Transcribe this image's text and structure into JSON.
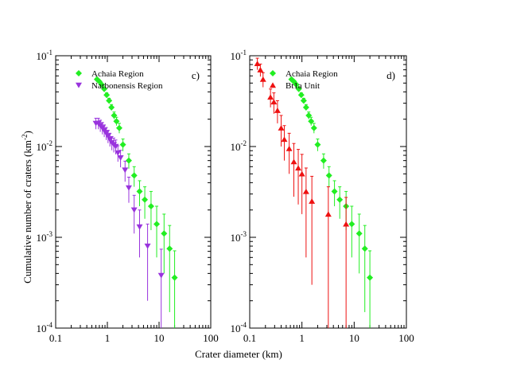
{
  "chart_data": {
    "type": "scatter",
    "xlabel": "Crater diameter (km)",
    "ylabel_main": "Cumulative number of craters (km",
    "ylabel_exp": "-2",
    "ylabel_end": ")",
    "xscale": "log",
    "yscale": "log",
    "colors": {
      "achaia": "#22ee22",
      "narbonensis": "#9933dd",
      "bt1a": "#ee1111"
    },
    "panels": [
      {
        "id": "c",
        "label": "c)",
        "xlim": [
          0.1,
          100
        ],
        "ylim": [
          0.0001,
          0.1
        ],
        "x_ticks": [
          {
            "value": 0.1,
            "label": "0.1"
          },
          {
            "value": 1,
            "label": "1"
          },
          {
            "value": 10,
            "label": "10"
          },
          {
            "value": 100,
            "label": "100"
          }
        ],
        "y_ticks": [
          {
            "value": 0.1,
            "base": "10",
            "exp": "-1"
          },
          {
            "value": 0.01,
            "base": "10",
            "exp": "-2"
          },
          {
            "value": 0.001,
            "base": "10",
            "exp": "-3"
          },
          {
            "value": 0.0001,
            "base": "10",
            "exp": "-4"
          }
        ],
        "series": [
          {
            "name": "Achaia Region",
            "marker": "diamond",
            "color_key": "achaia",
            "x": [
              0.63,
              0.7,
              0.78,
              0.87,
              0.97,
              1.08,
              1.2,
              1.35,
              1.5,
              1.7,
              2.0,
              2.6,
              3.3,
              4.2,
              5.3,
              7.0,
              9.0,
              12.5,
              16.0,
              20.0
            ],
            "y": [
              0.055,
              0.052,
              0.048,
              0.043,
              0.037,
              0.032,
              0.027,
              0.022,
              0.019,
              0.016,
              0.0105,
              0.007,
              0.0048,
              0.0032,
              0.0026,
              0.0022,
              0.0014,
              0.0011,
              0.00075,
              0.00036
            ],
            "err": [
              0.002,
              0.002,
              0.002,
              0.002,
              0.002,
              0.002,
              0.002,
              0.002,
              0.002,
              0.002,
              0.0016,
              0.0013,
              0.0012,
              0.001,
              0.001,
              0.001,
              0.0008,
              0.0007,
              0.0006,
              0.00035
            ]
          },
          {
            "name": "Narbonensis Region",
            "marker": "triangle-down",
            "color_key": "narbonensis",
            "x": [
              0.6,
              0.67,
              0.73,
              0.8,
              0.87,
              0.95,
              1.03,
              1.12,
              1.22,
              1.33,
              1.45,
              1.6,
              1.8,
              2.2,
              2.6,
              3.3,
              4.2,
              6.0,
              11.0
            ],
            "y": [
              0.018,
              0.018,
              0.017,
              0.016,
              0.015,
              0.014,
              0.013,
              0.012,
              0.011,
              0.0105,
              0.01,
              0.0085,
              0.0075,
              0.0055,
              0.0035,
              0.002,
              0.0013,
              0.0008,
              0.00038
            ],
            "err": [
              0.0025,
              0.0025,
              0.0025,
              0.0024,
              0.0023,
              0.0022,
              0.0021,
              0.002,
              0.0019,
              0.0019,
              0.0018,
              0.0017,
              0.0016,
              0.0014,
              0.0011,
              0.0009,
              0.0007,
              0.0006,
              0.00036
            ]
          }
        ]
      },
      {
        "id": "d",
        "label": "d)",
        "xlim": [
          0.1,
          100
        ],
        "ylim": [
          0.0001,
          0.1
        ],
        "x_ticks": [
          {
            "value": 0.1,
            "label": "0.1"
          },
          {
            "value": 1,
            "label": "1"
          },
          {
            "value": 10,
            "label": "10"
          },
          {
            "value": 100,
            "label": "100"
          }
        ],
        "y_ticks": [
          {
            "value": 0.1,
            "base": "10",
            "exp": "-1"
          },
          {
            "value": 0.01,
            "base": "10",
            "exp": "-2"
          },
          {
            "value": 0.001,
            "base": "10",
            "exp": "-3"
          },
          {
            "value": 0.0001,
            "base": "10",
            "exp": "-4"
          }
        ],
        "series": [
          {
            "name": "Achaia Region",
            "marker": "diamond",
            "color_key": "achaia",
            "x": [
              0.63,
              0.7,
              0.78,
              0.87,
              0.97,
              1.08,
              1.2,
              1.35,
              1.5,
              1.7,
              2.0,
              2.6,
              3.3,
              4.2,
              5.3,
              7.0,
              9.0,
              12.5,
              16.0,
              20.0
            ],
            "y": [
              0.055,
              0.052,
              0.048,
              0.043,
              0.037,
              0.032,
              0.027,
              0.022,
              0.019,
              0.016,
              0.0105,
              0.007,
              0.0048,
              0.0032,
              0.0026,
              0.0022,
              0.0014,
              0.0011,
              0.00075,
              0.00036
            ],
            "err": [
              0.002,
              0.002,
              0.002,
              0.002,
              0.002,
              0.002,
              0.002,
              0.002,
              0.002,
              0.002,
              0.0016,
              0.0013,
              0.0012,
              0.001,
              0.001,
              0.001,
              0.0008,
              0.0007,
              0.0006,
              0.00035
            ]
          },
          {
            "name": "Bt1a Unit",
            "marker": "triangle-up",
            "color_key": "bt1a",
            "x": [
              0.14,
              0.16,
              0.18,
              0.25,
              0.29,
              0.34,
              0.4,
              0.46,
              0.57,
              0.7,
              0.85,
              1.0,
              1.2,
              1.55,
              3.2,
              7.0
            ],
            "y": [
              0.082,
              0.07,
              0.055,
              0.035,
              0.031,
              0.025,
              0.016,
              0.012,
              0.0095,
              0.0068,
              0.0058,
              0.005,
              0.0032,
              0.0025,
              0.0018,
              0.0014
            ],
            "err": [
              0.012,
              0.011,
              0.01,
              0.008,
              0.008,
              0.007,
              0.006,
              0.005,
              0.0045,
              0.004,
              0.0035,
              0.0032,
              0.0026,
              0.0022,
              0.0018,
              0.00135
            ]
          }
        ]
      }
    ]
  }
}
